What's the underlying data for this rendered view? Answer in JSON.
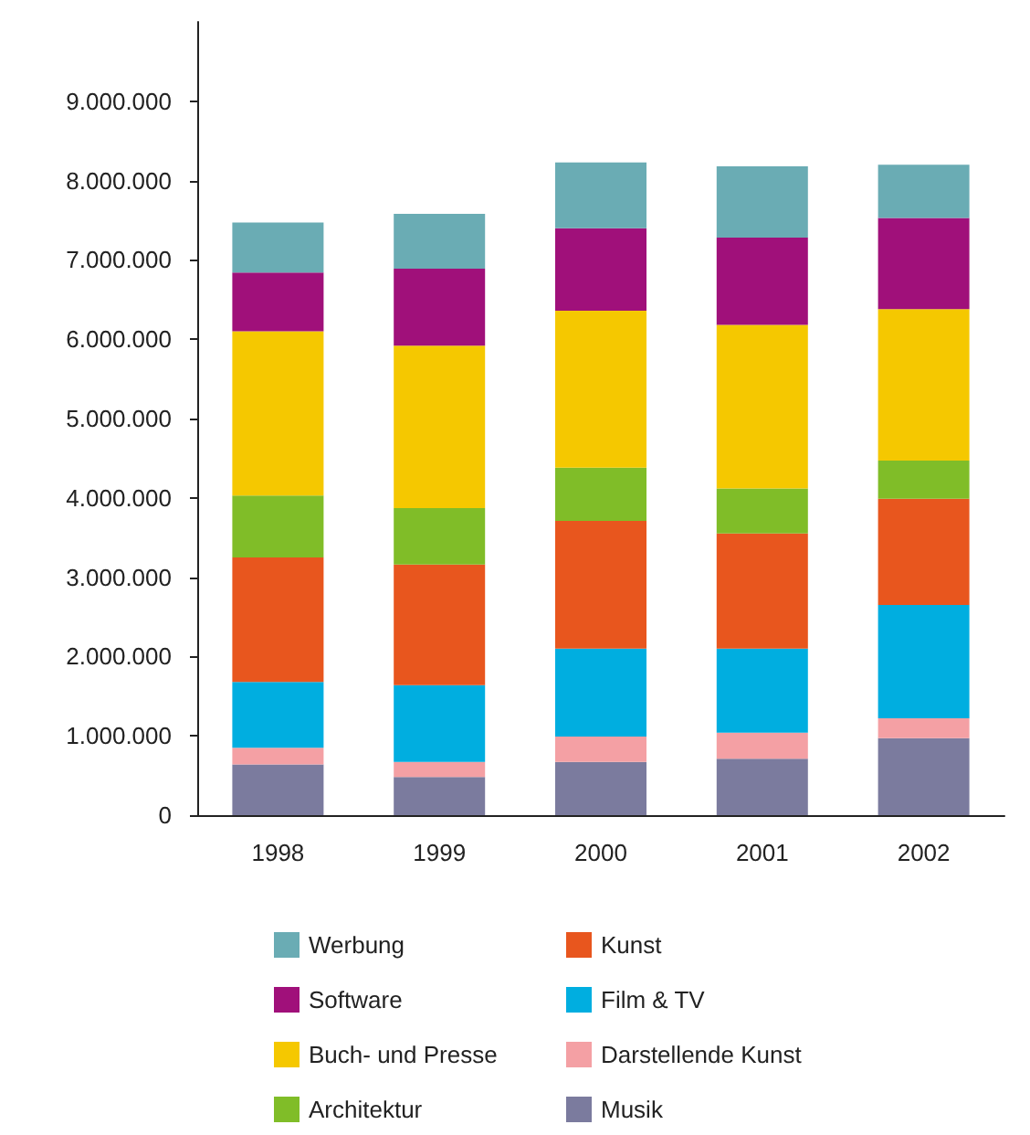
{
  "chart_data": {
    "type": "bar",
    "stacked": true,
    "categories": [
      "1998",
      "1999",
      "2000",
      "2001",
      "2002"
    ],
    "series": [
      {
        "name": "Musik",
        "color": "#7b7b9e",
        "values": [
          640000,
          480000,
          670000,
          710000,
          970000
        ]
      },
      {
        "name": "Darstellende Kunst",
        "color": "#f4a0a4",
        "values": [
          210000,
          190000,
          320000,
          330000,
          250000
        ]
      },
      {
        "name": "Film & TV",
        "color": "#00aee0",
        "values": [
          830000,
          970000,
          1110000,
          1060000,
          1430000
        ]
      },
      {
        "name": "Kunst",
        "color": "#e8561e",
        "values": [
          1570000,
          1520000,
          1610000,
          1450000,
          1340000
        ]
      },
      {
        "name": "Architektur",
        "color": "#80bd28",
        "values": [
          780000,
          710000,
          670000,
          570000,
          480000
        ]
      },
      {
        "name": "Buch- und Presse",
        "color": "#f5c800",
        "values": [
          2070000,
          2050000,
          1980000,
          2060000,
          1910000
        ]
      },
      {
        "name": "Software",
        "color": "#a0107a",
        "values": [
          740000,
          970000,
          1040000,
          1100000,
          1150000
        ]
      },
      {
        "name": "Werbung",
        "color": "#6aacb4",
        "values": [
          630000,
          690000,
          830000,
          900000,
          670000
        ]
      }
    ],
    "ylim": [
      0,
      10000000
    ],
    "yticks": [
      {
        "value": 0,
        "label": "0"
      },
      {
        "value": 1000000,
        "label": "1.000.000"
      },
      {
        "value": 2000000,
        "label": "2.000.000"
      },
      {
        "value": 3000000,
        "label": "3.000.000"
      },
      {
        "value": 4000000,
        "label": "4.000.000"
      },
      {
        "value": 5000000,
        "label": "5.000.000"
      },
      {
        "value": 6000000,
        "label": "6.000.000"
      },
      {
        "value": 7000000,
        "label": "7.000.000"
      },
      {
        "value": 8000000,
        "label": "8.000.000"
      },
      {
        "value": 9000000,
        "label": "9.000.000"
      }
    ],
    "grid": false,
    "legend": "bottom"
  }
}
